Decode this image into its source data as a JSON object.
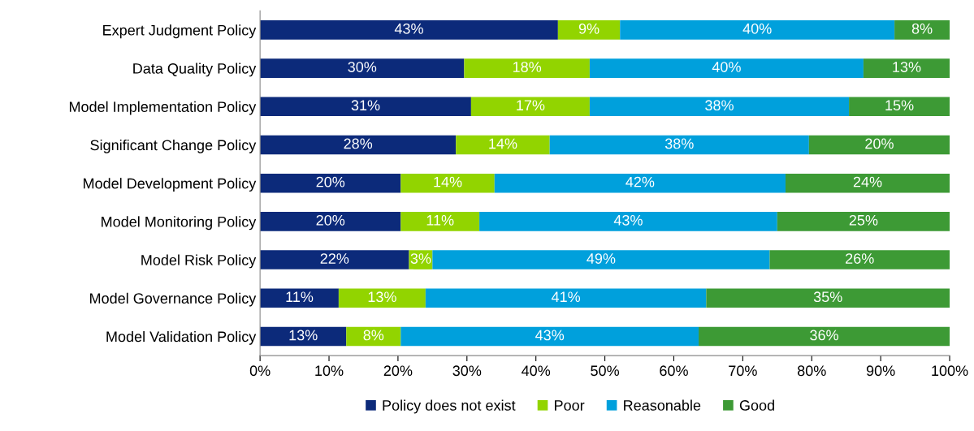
{
  "chart_data": {
    "type": "bar",
    "orientation": "horizontal",
    "stacked": true,
    "categories": [
      "Expert Judgment Policy",
      "Data Quality Policy",
      "Model Implementation Policy",
      "Significant Change Policy",
      "Model Development Policy",
      "Model Monitoring Policy",
      "Model Risk Policy",
      "Model Governance Policy",
      "Model Validation Policy"
    ],
    "series": [
      {
        "name": "Policy does not exist",
        "color": "#0c2a7a",
        "values": [
          43.2,
          29.6,
          30.6,
          28.4,
          20.4,
          20.4,
          21.6,
          11.4,
          12.5
        ],
        "value_labels": [
          "43%",
          "30%",
          "31%",
          "28%",
          "20%",
          "20%",
          "22%",
          "11%",
          "13%"
        ]
      },
      {
        "name": "Poor",
        "color": "#92d400",
        "values": [
          9.0,
          18.2,
          17.2,
          13.6,
          13.6,
          11.4,
          3.4,
          12.6,
          7.9
        ],
        "value_labels": [
          "9%",
          "18%",
          "17%",
          "14%",
          "14%",
          "11%",
          "3%",
          "13%",
          "8%"
        ]
      },
      {
        "name": "Reasonable",
        "color": "#00a0dc",
        "values": [
          39.8,
          39.7,
          37.6,
          37.6,
          42.2,
          43.2,
          48.9,
          40.7,
          43.2
        ],
        "value_labels": [
          "40%",
          "40%",
          "38%",
          "38%",
          "42%",
          "43%",
          "49%",
          "41%",
          "43%"
        ]
      },
      {
        "name": "Good",
        "color": "#3d9a35",
        "values": [
          8.0,
          12.5,
          14.6,
          20.4,
          23.8,
          25.0,
          26.1,
          35.3,
          36.4
        ],
        "value_labels": [
          "8%",
          "13%",
          "15%",
          "20%",
          "24%",
          "25%",
          "26%",
          "35%",
          "36%"
        ]
      }
    ],
    "xlim": [
      0,
      100
    ],
    "xticks": [
      {
        "value": 0,
        "label": "0%"
      },
      {
        "value": 10,
        "label": "10%"
      },
      {
        "value": 20,
        "label": "20%"
      },
      {
        "value": 30,
        "label": "30%"
      },
      {
        "value": 40,
        "label": "40%"
      },
      {
        "value": 50,
        "label": "50%"
      },
      {
        "value": 60,
        "label": "60%"
      },
      {
        "value": 70,
        "label": "70%"
      },
      {
        "value": 80,
        "label": "80%"
      },
      {
        "value": 90,
        "label": "90%"
      },
      {
        "value": 100,
        "label": "100%"
      }
    ],
    "legend": "bottom",
    "grid": false
  }
}
